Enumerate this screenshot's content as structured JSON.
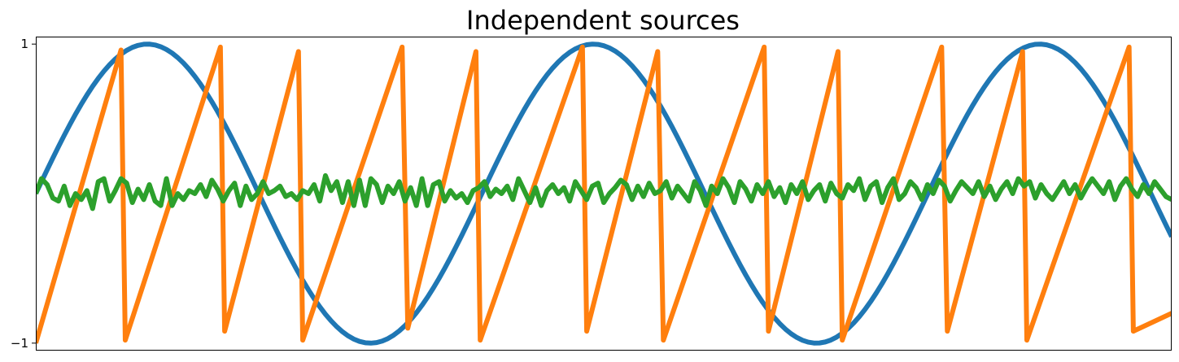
{
  "chart_data": {
    "type": "line",
    "title": "Independent sources",
    "xlabel": "",
    "ylabel": "",
    "grid": false,
    "x_ticks_visible": false,
    "xlim": [
      0,
      8
    ],
    "ylim": [
      -1.05,
      1.05
    ],
    "y_ticks": [
      {
        "value": 1,
        "label": "1"
      },
      {
        "value": -1,
        "label": "−1"
      }
    ],
    "series": [
      {
        "kind": "sine",
        "color": "#1f77b4",
        "function": "sin(2t)",
        "t_start": 0,
        "t_end": 8,
        "samples": 200
      },
      {
        "kind": "sawtooth",
        "color": "#ff7f0e",
        "function": "sawtooth(2π·t/1.2), peaks descend then restart",
        "samples": [
          [
            0.0,
            -1.0
          ],
          [
            0.6,
            0.96
          ],
          [
            0.63,
            -0.98
          ],
          [
            1.3,
            0.98
          ],
          [
            1.33,
            -0.92
          ],
          [
            1.85,
            0.95
          ],
          [
            1.88,
            -0.98
          ],
          [
            2.58,
            0.98
          ],
          [
            2.62,
            -0.9
          ],
          [
            3.1,
            0.95
          ],
          [
            3.13,
            -0.98
          ],
          [
            3.85,
            0.98
          ],
          [
            3.88,
            -0.92
          ],
          [
            4.38,
            0.95
          ],
          [
            4.42,
            -0.98
          ],
          [
            5.13,
            0.98
          ],
          [
            5.16,
            -0.92
          ],
          [
            5.65,
            0.95
          ],
          [
            5.68,
            -0.98
          ],
          [
            6.38,
            0.98
          ],
          [
            6.42,
            -0.92
          ],
          [
            6.95,
            0.95
          ],
          [
            6.98,
            -0.98
          ],
          [
            7.7,
            0.98
          ],
          [
            7.73,
            -0.92
          ],
          [
            8.0,
            -0.8
          ]
        ]
      },
      {
        "kind": "noise",
        "color": "#2ca02c",
        "samples": [
          [
            0.0,
            0.0
          ],
          [
            0.04,
            0.1
          ],
          [
            0.08,
            0.06
          ],
          [
            0.12,
            -0.03
          ],
          [
            0.16,
            -0.05
          ],
          [
            0.2,
            0.05
          ],
          [
            0.24,
            -0.08
          ],
          [
            0.28,
            0.0
          ],
          [
            0.32,
            -0.04
          ],
          [
            0.36,
            0.02
          ],
          [
            0.4,
            -0.1
          ],
          [
            0.44,
            0.08
          ],
          [
            0.48,
            0.1
          ],
          [
            0.52,
            -0.05
          ],
          [
            0.56,
            0.02
          ],
          [
            0.6,
            0.1
          ],
          [
            0.64,
            0.07
          ],
          [
            0.68,
            -0.06
          ],
          [
            0.72,
            0.03
          ],
          [
            0.76,
            -0.04
          ],
          [
            0.8,
            0.06
          ],
          [
            0.84,
            -0.05
          ],
          [
            0.88,
            -0.08
          ],
          [
            0.92,
            0.1
          ],
          [
            0.96,
            -0.08
          ],
          [
            1.0,
            0.0
          ],
          [
            1.04,
            -0.04
          ],
          [
            1.08,
            0.02
          ],
          [
            1.12,
            0.0
          ],
          [
            1.16,
            0.06
          ],
          [
            1.2,
            -0.02
          ],
          [
            1.24,
            0.09
          ],
          [
            1.28,
            0.03
          ],
          [
            1.32,
            -0.05
          ],
          [
            1.36,
            0.02
          ],
          [
            1.4,
            0.07
          ],
          [
            1.44,
            -0.08
          ],
          [
            1.48,
            0.05
          ],
          [
            1.52,
            -0.04
          ],
          [
            1.56,
            0.0
          ],
          [
            1.6,
            0.08
          ],
          [
            1.64,
            0.0
          ],
          [
            1.68,
            0.02
          ],
          [
            1.72,
            0.05
          ],
          [
            1.76,
            -0.02
          ],
          [
            1.8,
            0.0
          ],
          [
            1.84,
            -0.04
          ],
          [
            1.88,
            0.02
          ],
          [
            1.92,
            0.0
          ],
          [
            1.96,
            0.06
          ],
          [
            2.0,
            -0.05
          ],
          [
            2.04,
            0.12
          ],
          [
            2.08,
            0.02
          ],
          [
            2.12,
            0.08
          ],
          [
            2.16,
            -0.06
          ],
          [
            2.2,
            0.08
          ],
          [
            2.24,
            -0.08
          ],
          [
            2.28,
            0.09
          ],
          [
            2.32,
            -0.08
          ],
          [
            2.36,
            0.1
          ],
          [
            2.4,
            0.06
          ],
          [
            2.44,
            -0.06
          ],
          [
            2.48,
            0.05
          ],
          [
            2.52,
            0.0
          ],
          [
            2.56,
            0.08
          ],
          [
            2.6,
            -0.05
          ],
          [
            2.64,
            0.04
          ],
          [
            2.68,
            -0.08
          ],
          [
            2.72,
            0.1
          ],
          [
            2.76,
            -0.08
          ],
          [
            2.8,
            0.06
          ],
          [
            2.84,
            0.08
          ],
          [
            2.88,
            -0.05
          ],
          [
            2.92,
            0.02
          ],
          [
            2.96,
            -0.03
          ],
          [
            3.0,
            0.0
          ],
          [
            3.04,
            -0.06
          ],
          [
            3.08,
            0.02
          ],
          [
            3.12,
            0.04
          ],
          [
            3.16,
            0.08
          ],
          [
            3.2,
            -0.02
          ],
          [
            3.24,
            0.03
          ],
          [
            3.28,
            0.0
          ],
          [
            3.32,
            0.05
          ],
          [
            3.36,
            -0.04
          ],
          [
            3.4,
            0.1
          ],
          [
            3.44,
            0.02
          ],
          [
            3.48,
            -0.06
          ],
          [
            3.52,
            0.04
          ],
          [
            3.56,
            -0.08
          ],
          [
            3.6,
            0.02
          ],
          [
            3.64,
            0.06
          ],
          [
            3.68,
            0.0
          ],
          [
            3.72,
            0.04
          ],
          [
            3.76,
            -0.05
          ],
          [
            3.8,
            0.08
          ],
          [
            3.84,
            0.02
          ],
          [
            3.88,
            -0.04
          ],
          [
            3.92,
            0.05
          ],
          [
            3.96,
            0.07
          ],
          [
            4.0,
            -0.06
          ],
          [
            4.04,
            0.0
          ],
          [
            4.08,
            0.04
          ],
          [
            4.12,
            0.09
          ],
          [
            4.16,
            0.06
          ],
          [
            4.2,
            -0.04
          ],
          [
            4.24,
            0.05
          ],
          [
            4.28,
            -0.02
          ],
          [
            4.32,
            0.07
          ],
          [
            4.36,
            0.0
          ],
          [
            4.4,
            0.02
          ],
          [
            4.44,
            0.08
          ],
          [
            4.48,
            -0.03
          ],
          [
            4.52,
            0.05
          ],
          [
            4.56,
            0.0
          ],
          [
            4.6,
            -0.05
          ],
          [
            4.64,
            0.08
          ],
          [
            4.68,
            0.02
          ],
          [
            4.72,
            -0.08
          ],
          [
            4.76,
            0.05
          ],
          [
            4.8,
            0.0
          ],
          [
            4.84,
            0.1
          ],
          [
            4.88,
            0.04
          ],
          [
            4.92,
            -0.06
          ],
          [
            4.96,
            0.08
          ],
          [
            5.0,
            0.03
          ],
          [
            5.04,
            -0.05
          ],
          [
            5.08,
            0.06
          ],
          [
            5.12,
            0.0
          ],
          [
            5.16,
            0.08
          ],
          [
            5.2,
            -0.02
          ],
          [
            5.24,
            0.04
          ],
          [
            5.28,
            -0.06
          ],
          [
            5.32,
            0.06
          ],
          [
            5.36,
            0.0
          ],
          [
            5.4,
            0.08
          ],
          [
            5.44,
            -0.04
          ],
          [
            5.48,
            0.02
          ],
          [
            5.52,
            0.06
          ],
          [
            5.56,
            -0.05
          ],
          [
            5.6,
            0.07
          ],
          [
            5.64,
            0.0
          ],
          [
            5.68,
            -0.03
          ],
          [
            5.72,
            0.06
          ],
          [
            5.76,
            0.02
          ],
          [
            5.8,
            0.1
          ],
          [
            5.84,
            -0.04
          ],
          [
            5.88,
            0.05
          ],
          [
            5.92,
            0.08
          ],
          [
            5.96,
            -0.06
          ],
          [
            6.0,
            0.04
          ],
          [
            6.04,
            0.1
          ],
          [
            6.08,
            -0.04
          ],
          [
            6.12,
            0.0
          ],
          [
            6.16,
            0.08
          ],
          [
            6.2,
            0.04
          ],
          [
            6.24,
            -0.04
          ],
          [
            6.28,
            0.06
          ],
          [
            6.32,
            0.0
          ],
          [
            6.36,
            0.09
          ],
          [
            6.4,
            0.05
          ],
          [
            6.44,
            -0.05
          ],
          [
            6.48,
            0.02
          ],
          [
            6.52,
            0.08
          ],
          [
            6.56,
            0.04
          ],
          [
            6.6,
            0.0
          ],
          [
            6.64,
            0.08
          ],
          [
            6.68,
            -0.02
          ],
          [
            6.72,
            0.05
          ],
          [
            6.76,
            -0.04
          ],
          [
            6.8,
            0.03
          ],
          [
            6.84,
            0.08
          ],
          [
            6.88,
            0.0
          ],
          [
            6.92,
            0.1
          ],
          [
            6.96,
            0.05
          ],
          [
            7.0,
            0.08
          ],
          [
            7.04,
            -0.03
          ],
          [
            7.08,
            0.06
          ],
          [
            7.12,
            0.0
          ],
          [
            7.16,
            -0.04
          ],
          [
            7.2,
            0.02
          ],
          [
            7.24,
            0.08
          ],
          [
            7.28,
            0.0
          ],
          [
            7.32,
            0.06
          ],
          [
            7.36,
            -0.03
          ],
          [
            7.4,
            0.04
          ],
          [
            7.44,
            0.1
          ],
          [
            7.48,
            0.05
          ],
          [
            7.52,
            0.0
          ],
          [
            7.56,
            0.08
          ],
          [
            7.6,
            -0.04
          ],
          [
            7.64,
            0.05
          ],
          [
            7.68,
            0.1
          ],
          [
            7.72,
            0.03
          ],
          [
            7.76,
            -0.02
          ],
          [
            7.8,
            0.06
          ],
          [
            7.84,
            0.0
          ],
          [
            7.88,
            0.08
          ],
          [
            7.92,
            0.03
          ],
          [
            7.96,
            -0.02
          ],
          [
            8.0,
            -0.04
          ]
        ]
      }
    ]
  }
}
